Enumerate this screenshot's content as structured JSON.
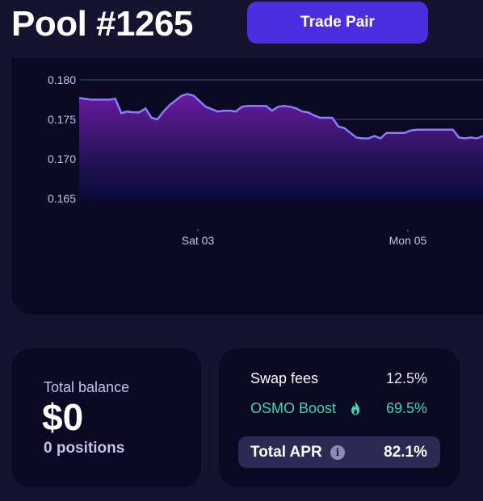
{
  "header": {
    "title": "Pool #1265",
    "trade_button_label": "Trade Pair"
  },
  "chart_data": {
    "type": "area",
    "y_ticks": [
      "0.180",
      "0.175",
      "0.170",
      "0.165"
    ],
    "x_tick_labels": [
      "Sat 03",
      "Mon 05"
    ],
    "ylim": [
      0.165,
      0.18
    ],
    "grid": true,
    "colors": {
      "line": "#8a7cff",
      "fill_top": "#6a1aa0",
      "fill_bottom": "#0a0a3a"
    },
    "series": [
      {
        "values": [
          0.1777,
          0.1776,
          0.1775,
          0.1775,
          0.1775,
          0.1775,
          0.1776,
          0.1758,
          0.176,
          0.1759,
          0.1759,
          0.1764,
          0.1752,
          0.175,
          0.176,
          0.1768,
          0.1774,
          0.178,
          0.1782,
          0.178,
          0.1773,
          0.1766,
          0.1763,
          0.176,
          0.1761,
          0.1761,
          0.176,
          0.1766,
          0.1767,
          0.1767,
          0.1767,
          0.1767,
          0.1761,
          0.1766,
          0.1767,
          0.1766,
          0.1764,
          0.176,
          0.1759,
          0.1755,
          0.1752,
          0.1752,
          0.1752,
          0.1741,
          0.1739,
          0.1733,
          0.1727,
          0.1726,
          0.1726,
          0.1729,
          0.1726,
          0.1733,
          0.1733,
          0.1733,
          0.1733,
          0.1736,
          0.1737,
          0.1737,
          0.1737,
          0.1737,
          0.1737,
          0.1737,
          0.1737,
          0.1727,
          0.1726,
          0.1727,
          0.1726,
          0.1729
        ]
      }
    ]
  },
  "balance": {
    "label": "Total balance",
    "value": "$0",
    "positions": "0 positions"
  },
  "apr": {
    "swap_fees_label": "Swap fees",
    "swap_fees_value": "12.5%",
    "boost_label": "OSMO Boost",
    "boost_value": "69.5%",
    "total_label": "Total APR",
    "total_value": "82.1%",
    "icons": [
      "flame-icon",
      "info-icon"
    ],
    "accent_color": "#3fd6b1"
  }
}
